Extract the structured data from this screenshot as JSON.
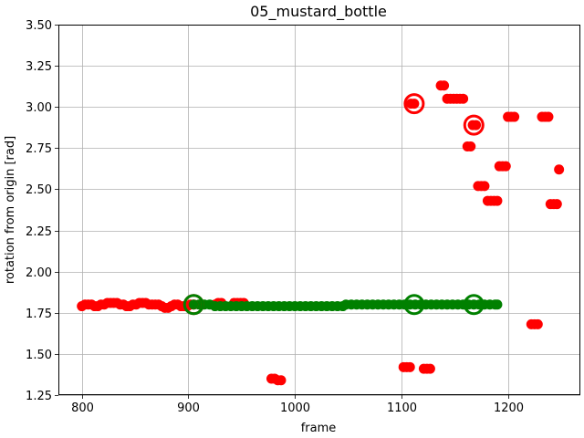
{
  "chart_data": {
    "type": "scatter",
    "title": "05_mustard_bottle",
    "xlabel": "frame",
    "ylabel": "rotation from origin [rad]",
    "xlim": [
      778,
      1268
    ],
    "ylim": [
      1.25,
      3.5
    ],
    "grid": true,
    "x_ticks": [
      800,
      900,
      1000,
      1100,
      1200
    ],
    "y_ticks": [
      1.25,
      1.5,
      1.75,
      2.0,
      2.25,
      2.5,
      2.75,
      3.0,
      3.25,
      3.5
    ],
    "x_tick_labels": [
      "800",
      "900",
      "1000",
      "1100",
      "1200"
    ],
    "y_tick_labels": [
      "1.25",
      "1.50",
      "1.75",
      "2.00",
      "2.25",
      "2.50",
      "2.75",
      "3.00",
      "3.25",
      "3.50"
    ],
    "series": [
      {
        "color": "#ff0000",
        "marker": "filled-circle",
        "points": [
          [
            800,
            1.79
          ],
          [
            803,
            1.8
          ],
          [
            806,
            1.8
          ],
          [
            809,
            1.8
          ],
          [
            812,
            1.79
          ],
          [
            815,
            1.79
          ],
          [
            818,
            1.8
          ],
          [
            821,
            1.8
          ],
          [
            824,
            1.81
          ],
          [
            827,
            1.81
          ],
          [
            830,
            1.81
          ],
          [
            833,
            1.81
          ],
          [
            836,
            1.8
          ],
          [
            839,
            1.8
          ],
          [
            842,
            1.79
          ],
          [
            845,
            1.79
          ],
          [
            848,
            1.8
          ],
          [
            851,
            1.8
          ],
          [
            854,
            1.81
          ],
          [
            857,
            1.81
          ],
          [
            860,
            1.81
          ],
          [
            863,
            1.8
          ],
          [
            866,
            1.8
          ],
          [
            869,
            1.8
          ],
          [
            872,
            1.8
          ],
          [
            875,
            1.79
          ],
          [
            878,
            1.78
          ],
          [
            881,
            1.78
          ],
          [
            884,
            1.79
          ],
          [
            887,
            1.8
          ],
          [
            890,
            1.8
          ],
          [
            893,
            1.79
          ],
          [
            896,
            1.79
          ],
          [
            899,
            1.79
          ],
          [
            902,
            1.8
          ],
          [
            905,
            1.8
          ],
          [
            925,
            1.8
          ],
          [
            928,
            1.81
          ],
          [
            931,
            1.81
          ],
          [
            943,
            1.81
          ],
          [
            946,
            1.81
          ],
          [
            949,
            1.81
          ],
          [
            952,
            1.81
          ],
          [
            978,
            1.35
          ],
          [
            981,
            1.35
          ],
          [
            984,
            1.34
          ],
          [
            987,
            1.34
          ],
          [
            1102,
            1.42
          ],
          [
            1105,
            1.42
          ],
          [
            1108,
            1.42
          ],
          [
            1109,
            3.02
          ],
          [
            1112,
            3.02
          ],
          [
            1121,
            1.41
          ],
          [
            1124,
            1.41
          ],
          [
            1127,
            1.41
          ],
          [
            1137,
            3.13
          ],
          [
            1140,
            3.13
          ],
          [
            1143,
            3.05
          ],
          [
            1146,
            3.05
          ],
          [
            1149,
            3.05
          ],
          [
            1152,
            3.05
          ],
          [
            1155,
            3.05
          ],
          [
            1158,
            3.05
          ],
          [
            1162,
            2.76
          ],
          [
            1165,
            2.76
          ],
          [
            1167,
            2.89
          ],
          [
            1170,
            2.89
          ],
          [
            1172,
            2.52
          ],
          [
            1175,
            2.52
          ],
          [
            1178,
            2.52
          ],
          [
            1181,
            2.43
          ],
          [
            1184,
            2.43
          ],
          [
            1187,
            2.43
          ],
          [
            1190,
            2.43
          ],
          [
            1192,
            2.64
          ],
          [
            1195,
            2.64
          ],
          [
            1198,
            2.64
          ],
          [
            1200,
            2.94
          ],
          [
            1203,
            2.94
          ],
          [
            1206,
            2.94
          ],
          [
            1222,
            1.68
          ],
          [
            1225,
            1.68
          ],
          [
            1228,
            1.68
          ],
          [
            1232,
            2.94
          ],
          [
            1235,
            2.94
          ],
          [
            1238,
            2.94
          ],
          [
            1240,
            2.41
          ],
          [
            1243,
            2.41
          ],
          [
            1246,
            2.41
          ],
          [
            1248,
            2.62
          ]
        ]
      },
      {
        "color": "#008000",
        "marker": "filled-circle",
        "points": [
          [
            905,
            1.8
          ],
          [
            910,
            1.8
          ],
          [
            915,
            1.8
          ],
          [
            920,
            1.8
          ],
          [
            925,
            1.79
          ],
          [
            930,
            1.79
          ],
          [
            935,
            1.79
          ],
          [
            940,
            1.79
          ],
          [
            945,
            1.79
          ],
          [
            950,
            1.79
          ],
          [
            955,
            1.79
          ],
          [
            960,
            1.79
          ],
          [
            965,
            1.79
          ],
          [
            970,
            1.79
          ],
          [
            975,
            1.79
          ],
          [
            980,
            1.79
          ],
          [
            985,
            1.79
          ],
          [
            990,
            1.79
          ],
          [
            995,
            1.79
          ],
          [
            1000,
            1.79
          ],
          [
            1005,
            1.79
          ],
          [
            1010,
            1.79
          ],
          [
            1015,
            1.79
          ],
          [
            1020,
            1.79
          ],
          [
            1025,
            1.79
          ],
          [
            1030,
            1.79
          ],
          [
            1035,
            1.79
          ],
          [
            1040,
            1.79
          ],
          [
            1045,
            1.79
          ],
          [
            1048,
            1.8
          ],
          [
            1053,
            1.8
          ],
          [
            1058,
            1.8
          ],
          [
            1063,
            1.8
          ],
          [
            1068,
            1.8
          ],
          [
            1073,
            1.8
          ],
          [
            1078,
            1.8
          ],
          [
            1083,
            1.8
          ],
          [
            1088,
            1.8
          ],
          [
            1093,
            1.8
          ],
          [
            1098,
            1.8
          ],
          [
            1103,
            1.8
          ],
          [
            1108,
            1.8
          ],
          [
            1113,
            1.8
          ],
          [
            1118,
            1.8
          ],
          [
            1123,
            1.8
          ],
          [
            1128,
            1.8
          ],
          [
            1133,
            1.8
          ],
          [
            1138,
            1.8
          ],
          [
            1143,
            1.8
          ],
          [
            1148,
            1.8
          ],
          [
            1153,
            1.8
          ],
          [
            1158,
            1.8
          ],
          [
            1163,
            1.8
          ],
          [
            1168,
            1.8
          ],
          [
            1173,
            1.8
          ],
          [
            1178,
            1.8
          ],
          [
            1183,
            1.8
          ],
          [
            1188,
            1.8
          ],
          [
            1190,
            1.8
          ]
        ]
      }
    ],
    "rings": [
      {
        "x": 905,
        "y": 1.8,
        "color": "#ff0000"
      },
      {
        "x": 905,
        "y": 1.8,
        "color": "#008000"
      },
      {
        "x": 1112,
        "y": 3.02,
        "color": "#ff0000"
      },
      {
        "x": 1112,
        "y": 1.8,
        "color": "#008000"
      },
      {
        "x": 1168,
        "y": 2.89,
        "color": "#ff0000"
      },
      {
        "x": 1168,
        "y": 1.8,
        "color": "#008000"
      }
    ],
    "colors": {
      "red": "#ff0000",
      "green": "#008000",
      "grid": "#b0b0b0"
    }
  }
}
